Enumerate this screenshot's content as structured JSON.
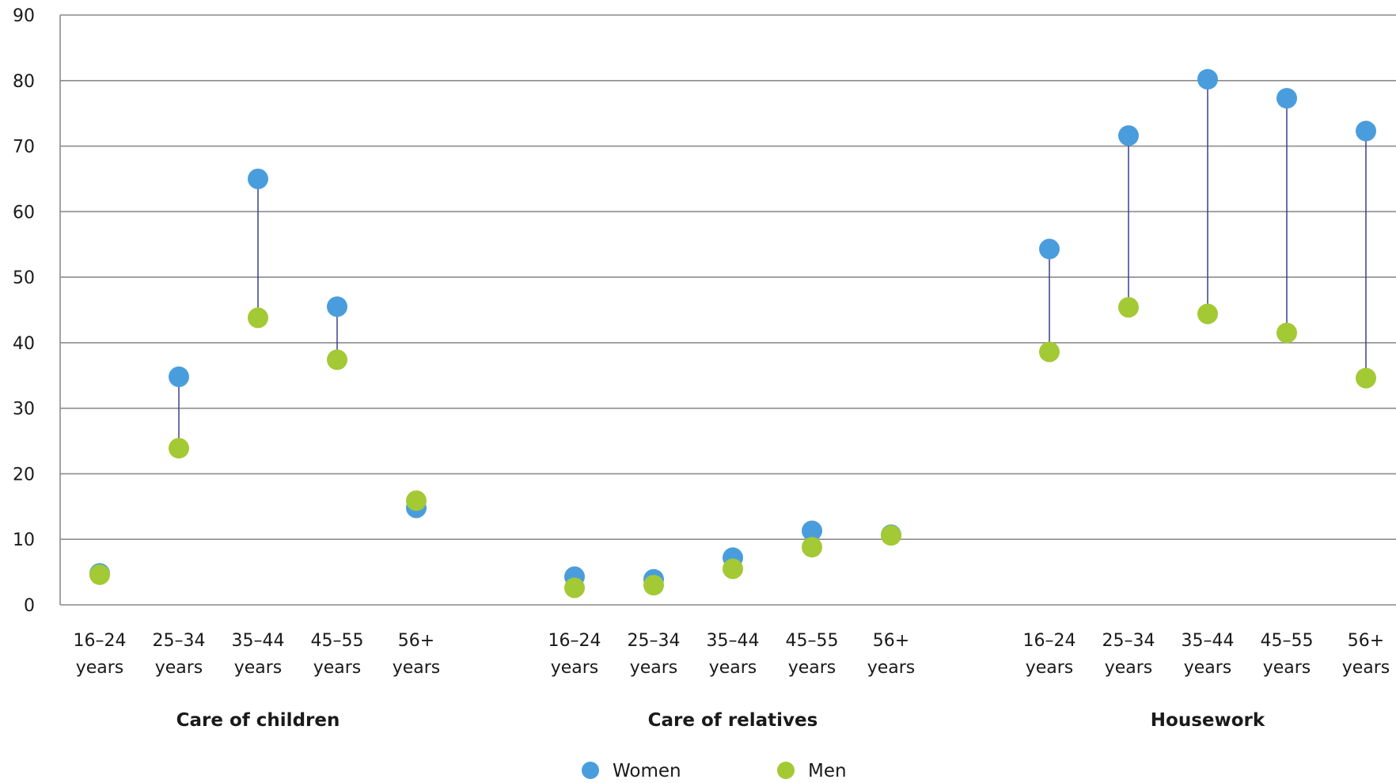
{
  "chart_data": {
    "type": "scatter",
    "ylim": [
      0,
      90
    ],
    "yticks": [
      0,
      10,
      20,
      30,
      40,
      50,
      60,
      70,
      80,
      90
    ],
    "grid": true,
    "legend_position": "bottom",
    "groups": [
      {
        "name": "Care of children",
        "categories": [
          {
            "line1": "16–24",
            "line2": "years"
          },
          {
            "line1": "25–34",
            "line2": "years"
          },
          {
            "line1": "35–44",
            "line2": "years"
          },
          {
            "line1": "45–55",
            "line2": "years"
          },
          {
            "line1": "56+",
            "line2": "years"
          }
        ],
        "women": [
          4.8,
          34.8,
          65.0,
          45.5,
          14.8
        ],
        "men": [
          4.6,
          23.9,
          43.8,
          37.4,
          15.9
        ]
      },
      {
        "name": "Care of relatives",
        "categories": [
          {
            "line1": "16–24",
            "line2": "years"
          },
          {
            "line1": "25–34",
            "line2": "years"
          },
          {
            "line1": "35–44",
            "line2": "years"
          },
          {
            "line1": "45–55",
            "line2": "years"
          },
          {
            "line1": "56+",
            "line2": "years"
          }
        ],
        "women": [
          4.3,
          3.9,
          7.2,
          11.3,
          10.7
        ],
        "men": [
          2.6,
          3.0,
          5.5,
          8.8,
          10.6
        ]
      },
      {
        "name": "Housework",
        "categories": [
          {
            "line1": "16–24",
            "line2": "years"
          },
          {
            "line1": "25–34",
            "line2": "years"
          },
          {
            "line1": "35–44",
            "line2": "years"
          },
          {
            "line1": "45–55",
            "line2": "years"
          },
          {
            "line1": "56+",
            "line2": "years"
          }
        ],
        "women": [
          54.3,
          71.6,
          80.2,
          77.3,
          72.3
        ],
        "men": [
          38.6,
          45.4,
          44.4,
          41.5,
          34.6
        ]
      }
    ],
    "series": [
      {
        "name": "Women",
        "color": "#4a9ddc"
      },
      {
        "name": "Men",
        "color": "#a3c935"
      }
    ],
    "connector_color": "#3a3f8f",
    "grid_color": "#8c8c8c"
  }
}
